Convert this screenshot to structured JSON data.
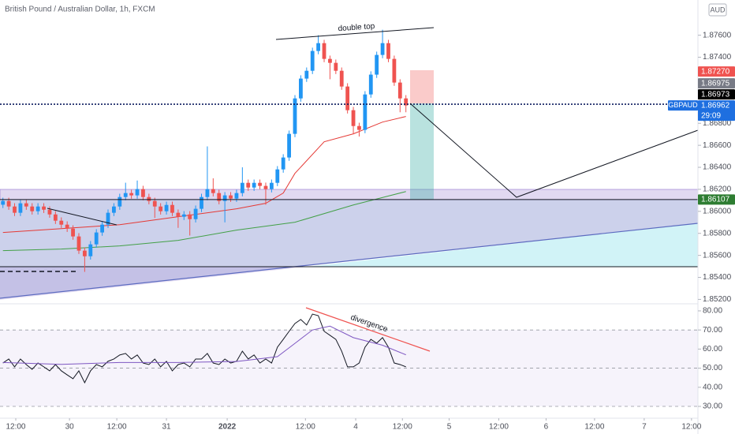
{
  "header": {
    "title": "British Pound / Australian Dollar, 1h, FXCM",
    "currency": "AUD"
  },
  "chart_data": [
    {
      "type": "candlestick",
      "x": [
        0,
        1,
        2,
        3,
        4,
        5,
        6,
        7,
        8,
        9,
        10,
        11,
        12,
        13,
        14,
        15,
        16,
        17,
        18,
        19,
        20,
        21,
        22,
        23,
        24,
        25,
        26,
        27,
        28,
        29,
        30,
        31,
        32,
        33,
        34,
        35,
        36,
        37,
        38,
        39,
        40,
        41,
        42,
        43,
        44,
        45,
        46,
        47,
        48,
        49,
        50,
        51,
        52,
        53,
        54,
        55,
        56,
        57,
        58,
        59,
        60,
        61,
        62,
        63,
        64,
        65,
        66,
        67,
        68,
        69
      ],
      "open": [
        1.8606,
        1.86094,
        1.86044,
        1.85987,
        1.86073,
        1.86044,
        1.86001,
        1.86044,
        1.86015,
        1.85972,
        1.85915,
        1.85879,
        1.85843,
        1.85772,
        1.85643,
        1.85592,
        1.857,
        1.85808,
        1.85879,
        1.85987,
        1.86044,
        1.8613,
        1.86166,
        1.86145,
        1.86202,
        1.8613,
        1.86094,
        1.86044,
        1.86001,
        1.86058,
        1.85987,
        1.85951,
        1.85972,
        1.85929,
        1.86023,
        1.8613,
        1.86202,
        1.86166,
        1.86094,
        1.86145,
        1.86116,
        1.86166,
        1.86259,
        1.86216,
        1.86259,
        1.86231,
        1.86202,
        1.86259,
        1.86381,
        1.86489,
        1.86704,
        1.87026,
        1.87206,
        1.87277,
        1.87457,
        1.87528,
        1.87385,
        1.87349,
        1.87277,
        1.87134,
        1.86919,
        1.86775,
        1.8674,
        1.87062,
        1.87242,
        1.87421,
        1.87528,
        1.87385,
        1.8717,
        1.87026
      ],
      "high": [
        1.86124,
        1.86124,
        1.86074,
        1.86103,
        1.86103,
        1.86074,
        1.86074,
        1.86074,
        1.86045,
        1.86002,
        1.85945,
        1.85909,
        1.85873,
        1.85802,
        1.85673,
        1.8573,
        1.85838,
        1.85909,
        1.86017,
        1.86074,
        1.8616,
        1.8626,
        1.86196,
        1.8628,
        1.86232,
        1.8616,
        1.86124,
        1.86074,
        1.86088,
        1.86088,
        1.86017,
        1.86002,
        1.86002,
        1.86053,
        1.8616,
        1.8659,
        1.863,
        1.86196,
        1.86175,
        1.86175,
        1.86196,
        1.864,
        1.86289,
        1.86289,
        1.86289,
        1.86261,
        1.86289,
        1.86411,
        1.86519,
        1.86734,
        1.87056,
        1.87236,
        1.87307,
        1.87487,
        1.876,
        1.87558,
        1.87415,
        1.87379,
        1.87307,
        1.87164,
        1.86949,
        1.86805,
        1.87092,
        1.87272,
        1.87451,
        1.8765,
        1.87558,
        1.87415,
        1.872,
        1.87056
      ],
      "low": [
        1.8603,
        1.86014,
        1.85957,
        1.85957,
        1.86014,
        1.85971,
        1.85971,
        1.85985,
        1.85942,
        1.85885,
        1.85849,
        1.85813,
        1.85742,
        1.85613,
        1.8545,
        1.85562,
        1.8567,
        1.85778,
        1.85849,
        1.85957,
        1.86014,
        1.861,
        1.86115,
        1.86115,
        1.861,
        1.86064,
        1.8594,
        1.85971,
        1.85971,
        1.85957,
        1.8585,
        1.85921,
        1.8578,
        1.85899,
        1.85993,
        1.861,
        1.86136,
        1.86064,
        1.859,
        1.86086,
        1.86086,
        1.86136,
        1.86186,
        1.86186,
        1.86201,
        1.8606,
        1.86172,
        1.86229,
        1.86351,
        1.86459,
        1.86674,
        1.86996,
        1.87176,
        1.87247,
        1.87427,
        1.87355,
        1.872,
        1.87247,
        1.87104,
        1.86889,
        1.867,
        1.8668,
        1.8671,
        1.87032,
        1.87212,
        1.87391,
        1.87355,
        1.8714,
        1.869,
        1.869
      ],
      "close": [
        1.86094,
        1.86044,
        1.85987,
        1.86073,
        1.86044,
        1.86001,
        1.86044,
        1.86015,
        1.85972,
        1.85915,
        1.85879,
        1.85843,
        1.85772,
        1.85643,
        1.85592,
        1.857,
        1.85808,
        1.85879,
        1.85987,
        1.86044,
        1.8613,
        1.86166,
        1.86145,
        1.86202,
        1.8613,
        1.86094,
        1.86044,
        1.86001,
        1.86058,
        1.85987,
        1.85951,
        1.85972,
        1.85929,
        1.86023,
        1.8613,
        1.86202,
        1.86166,
        1.86094,
        1.86145,
        1.86116,
        1.86166,
        1.86259,
        1.86216,
        1.86259,
        1.86231,
        1.86202,
        1.86259,
        1.86381,
        1.86489,
        1.86704,
        1.87026,
        1.87206,
        1.87277,
        1.87457,
        1.87528,
        1.87385,
        1.87349,
        1.87277,
        1.87134,
        1.86919,
        1.86775,
        1.8674,
        1.87062,
        1.87242,
        1.87421,
        1.87528,
        1.87385,
        1.8717,
        1.87026,
        1.86962
      ],
      "up_color": "#2196f3",
      "down_color": "#ef5350",
      "series": [
        {
          "color": "#e53935",
          "x": [
            0,
            10,
            20,
            30,
            40,
            45,
            48,
            50,
            55,
            60,
            65,
            69
          ],
          "values": [
            1.85808,
            1.85843,
            1.85879,
            1.85951,
            1.86023,
            1.86073,
            1.86166,
            1.86345,
            1.86632,
            1.86704,
            1.86811,
            1.86862
          ]
        },
        {
          "color": "#43a047",
          "x": [
            0,
            10,
            20,
            30,
            40,
            50,
            60,
            69
          ],
          "values": [
            1.85643,
            1.85657,
            1.85686,
            1.85736,
            1.85829,
            1.85901,
            1.86058,
            1.8618
          ]
        }
      ],
      "xlim": [
        -0.5,
        119
      ],
      "ylim": [
        1.8516,
        1.8792
      ],
      "yticks": [
        {
          "value": 1.876,
          "label": "1.87600"
        },
        {
          "value": 1.874,
          "label": "1.87400"
        },
        {
          "value": 1.868,
          "label": "1.86800"
        },
        {
          "value": 1.866,
          "label": "1.86600"
        },
        {
          "value": 1.864,
          "label": "1.86400"
        },
        {
          "value": 1.862,
          "label": "1.86200"
        },
        {
          "value": 1.86,
          "label": "1.86000"
        },
        {
          "value": 1.858,
          "label": "1.85800"
        },
        {
          "value": 1.856,
          "label": "1.85600"
        },
        {
          "value": 1.854,
          "label": "1.85400"
        },
        {
          "value": 1.852,
          "label": "1.85200"
        }
      ],
      "xticks": [
        {
          "value": 2.2,
          "label": "12:00"
        },
        {
          "value": 11.4,
          "label": "30"
        },
        {
          "value": 19.5,
          "label": "12:00"
        },
        {
          "value": 28,
          "label": "31"
        },
        {
          "value": 38.4,
          "label": "2022"
        },
        {
          "value": 51.8,
          "label": "12:00"
        },
        {
          "value": 60.4,
          "label": "4"
        },
        {
          "value": 68.4,
          "label": "12:00"
        },
        {
          "value": 76.4,
          "label": "5"
        },
        {
          "value": 84.9,
          "label": "12:00"
        },
        {
          "value": 93,
          "label": "6"
        },
        {
          "value": 101.3,
          "label": "12:00"
        },
        {
          "value": 109.8,
          "label": "7"
        },
        {
          "value": 117.9,
          "label": "12:00"
        }
      ],
      "price_labels": [
        {
          "value": 1.8727,
          "label": "1.87270",
          "color": "#ef5350"
        },
        {
          "value": 1.86975,
          "label": "1.86975",
          "color": "#787b86"
        },
        {
          "value": 1.86973,
          "label": "1.86973",
          "color": "#000000",
          "line": "dotted"
        },
        {
          "value": 1.86962,
          "label": "1.86962",
          "symbol": "GBPAUD",
          "countdown": "29:09",
          "color": "#1e6fe0"
        },
        {
          "value": 1.86107,
          "label": "1.86107",
          "color": "#2e7d32",
          "line": "solid"
        }
      ],
      "annotations": [
        "double top"
      ]
    },
    {
      "type": "line",
      "x": [
        0,
        1,
        2,
        3,
        4,
        5,
        6,
        7,
        8,
        9,
        10,
        11,
        12,
        13,
        14,
        15,
        16,
        17,
        18,
        19,
        20,
        21,
        22,
        23,
        24,
        25,
        26,
        27,
        28,
        29,
        30,
        31,
        32,
        33,
        34,
        35,
        36,
        37,
        38,
        39,
        40,
        41,
        42,
        43,
        44,
        45,
        46,
        47,
        48,
        49,
        50,
        51,
        52,
        53,
        54,
        55,
        56,
        57,
        58,
        59,
        60,
        61,
        62,
        63,
        64,
        65,
        66,
        67,
        68,
        69
      ],
      "series": [
        {
          "color": "#131722",
          "values": [
            52.7,
            54.8,
            50.7,
            54.8,
            51.9,
            49.4,
            52.7,
            50.7,
            48.6,
            51.9,
            48.6,
            46.5,
            44.5,
            48.6,
            42.4,
            48.6,
            51.9,
            50.7,
            53.6,
            54.8,
            56.9,
            57.7,
            54.8,
            56.9,
            52.7,
            51.9,
            54.8,
            50.7,
            53.6,
            48.6,
            51.9,
            52.7,
            50.7,
            54.8,
            54.8,
            57.7,
            52.7,
            51.9,
            54.8,
            52.7,
            53.6,
            58.9,
            54.8,
            56.9,
            52.7,
            54.8,
            52.7,
            61.0,
            65.1,
            69.3,
            73.4,
            75.5,
            72.6,
            78.3,
            77.5,
            69.3,
            67.2,
            65.1,
            58.9,
            50.7,
            50.7,
            52.7,
            61.0,
            65.1,
            63.1,
            66.0,
            61.0,
            52.7,
            51.9,
            50.7
          ]
        },
        {
          "color": "#7e57c2",
          "x": [
            0,
            10,
            20,
            30,
            40,
            47,
            50,
            53,
            56,
            60,
            65,
            69
          ],
          "values": [
            53,
            52,
            53,
            53,
            53.5,
            56,
            63,
            70,
            72,
            66,
            62,
            57
          ]
        }
      ],
      "xlim": [
        -0.5,
        119
      ],
      "ylim": [
        23.8,
        83.7
      ],
      "yticks": [
        {
          "value": 80,
          "label": "80.00"
        },
        {
          "value": 70,
          "label": "70.00"
        },
        {
          "value": 60,
          "label": "60.00"
        },
        {
          "value": 50,
          "label": "50.00"
        },
        {
          "value": 40,
          "label": "40.00"
        },
        {
          "value": 30,
          "label": "30.00"
        }
      ],
      "levels": [
        70,
        50,
        30
      ],
      "annotations": [
        "divergence"
      ]
    }
  ]
}
